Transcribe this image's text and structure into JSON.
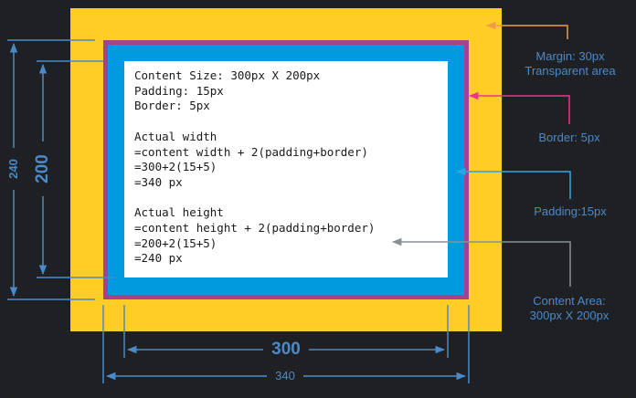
{
  "content_lines": [
    "Content Size: 300px X 200px",
    "Padding: 15px",
    "Border: 5px",
    "",
    "Actual width",
    "=content width + 2(padding+border)",
    "=300+2(15+5)",
    "=340 px",
    "",
    "Actual height",
    "=content height + 2(padding+border)",
    "=200+2(15+5)",
    "=240 px"
  ],
  "annotations": {
    "margin_line1": "Margin: 30px",
    "margin_line2": "Transparent area",
    "border": "Border: 5px",
    "padding": "Padding:15px",
    "content_line1": "Content Area:",
    "content_line2": "300px X 200px"
  },
  "dimensions": {
    "outer_height": "240",
    "inner_height": "200",
    "inner_width": "300",
    "outer_width": "340"
  },
  "colors": {
    "background": "#1f2023",
    "margin": "#ffcd24",
    "border": "#a3428f",
    "padding": "#009bde",
    "content": "#ffffff",
    "dimension_lines": "#4a8ac8",
    "margin_annotation": "#f39a4a",
    "border_annotation": "#e8368f",
    "padding_annotation": "#2aa7e6",
    "content_annotation": "#8a8f95"
  }
}
